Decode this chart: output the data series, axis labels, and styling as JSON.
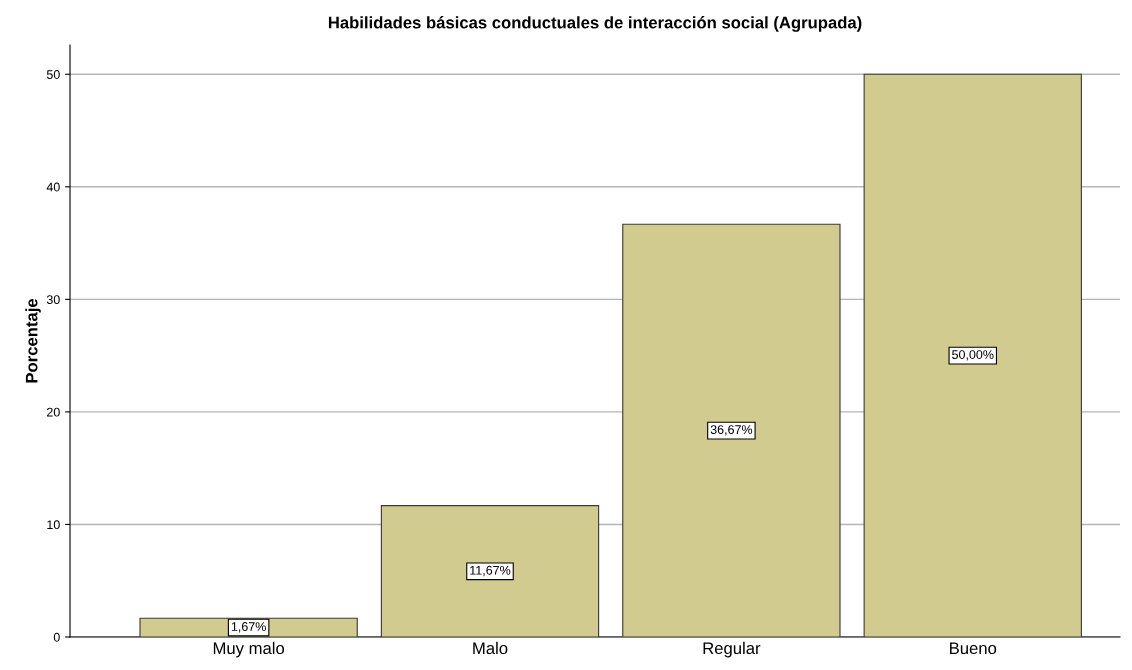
{
  "chart_data": {
    "type": "bar",
    "title": "Habilidades básicas conductuales de interacción social (Agrupada)",
    "ylabel": "Porcentaje",
    "categories": [
      "Muy malo",
      "Malo",
      "Regular",
      "Bueno"
    ],
    "values": [
      1.67,
      11.67,
      36.67,
      50.0
    ],
    "value_labels": [
      "1,67%",
      "11,67%",
      "36,67%",
      "50,00%"
    ],
    "color": "#d2cb8f",
    "ylim": [
      0,
      52.6
    ],
    "yticks": [
      0,
      10,
      20,
      30,
      40,
      50
    ],
    "grid": "y"
  }
}
